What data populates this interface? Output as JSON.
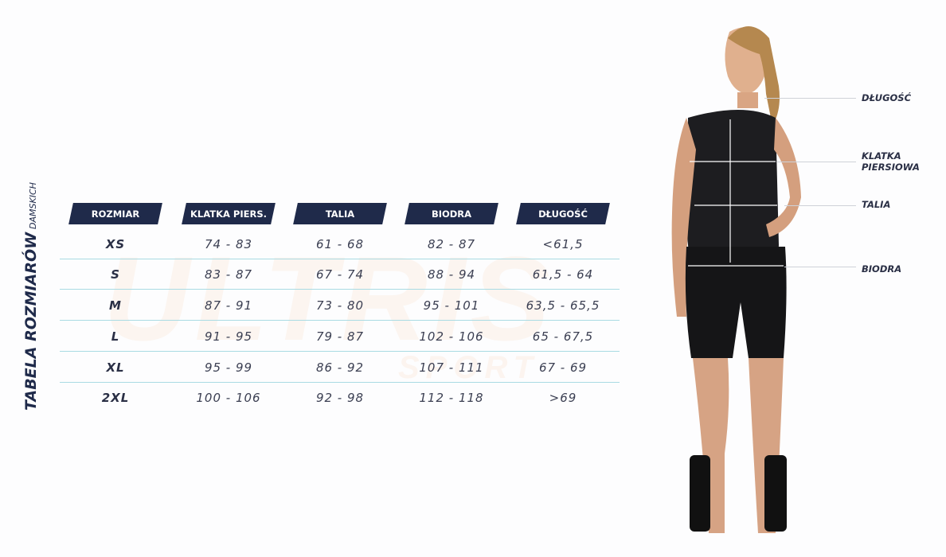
{
  "watermark": {
    "brand": "ULTRIS",
    "sub": "SPORT"
  },
  "title": {
    "main": "TABELA ROZMIARÓW",
    "sub": "DAMSKICH"
  },
  "table": {
    "headers": [
      "ROZMIAR",
      "KLATKA PIERS.",
      "TALIA",
      "BIODRA",
      "DŁUGOŚĆ"
    ],
    "rows": [
      [
        "XS",
        "74 - 83",
        "61 - 68",
        "82 - 87",
        "<61,5"
      ],
      [
        "S",
        "83 - 87",
        "67 - 74",
        "88 - 94",
        "61,5 - 64"
      ],
      [
        "M",
        "87 - 91",
        "73 - 80",
        "95 - 101",
        "63,5 - 65,5"
      ],
      [
        "L",
        "91 - 95",
        "79 - 87",
        "102 - 106",
        "65 - 67,5"
      ],
      [
        "XL",
        "95 - 99",
        "86 - 92",
        "107 - 111",
        "67 - 69"
      ],
      [
        "2XL",
        "100 - 106",
        "92 - 98",
        "112 - 118",
        ">69"
      ]
    ]
  },
  "measurements": {
    "length": "DŁUGOŚĆ",
    "chest_line1": "KLATKA",
    "chest_line2": "PIERSIOWA",
    "waist": "TALIA",
    "hips": "BIODRA"
  },
  "colors": {
    "header_bg": "#1f2a4a",
    "separator": "#a9dbe3",
    "text": "#2a2f45"
  }
}
